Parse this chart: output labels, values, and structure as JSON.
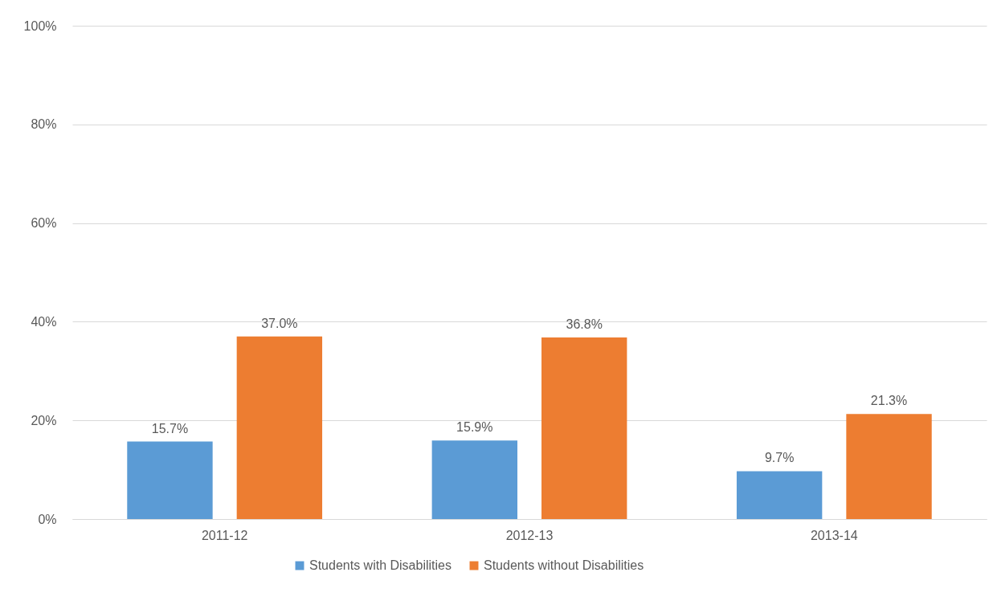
{
  "chart_data": {
    "type": "bar",
    "categories": [
      "2011-12",
      "2012-13",
      "2013-14"
    ],
    "series": [
      {
        "name": "Students with Disabilities",
        "color": "#5b9bd5",
        "values": [
          15.7,
          15.9,
          9.7
        ],
        "value_labels": [
          "15.7%",
          "15.9%",
          "9.7%"
        ]
      },
      {
        "name": "Students without Disabilities",
        "color": "#ed7d31",
        "values": [
          37.0,
          36.8,
          21.3
        ],
        "value_labels": [
          "37.0%",
          "36.8%",
          "21.3%"
        ]
      }
    ],
    "ylim": [
      0,
      100
    ],
    "yticks": [
      {
        "value": 0,
        "label": "0%"
      },
      {
        "value": 20,
        "label": "20%"
      },
      {
        "value": 40,
        "label": "40%"
      },
      {
        "value": 60,
        "label": "60%"
      },
      {
        "value": 80,
        "label": "80%"
      },
      {
        "value": 100,
        "label": "100%"
      }
    ],
    "grid": "y",
    "legend": "bottom"
  }
}
